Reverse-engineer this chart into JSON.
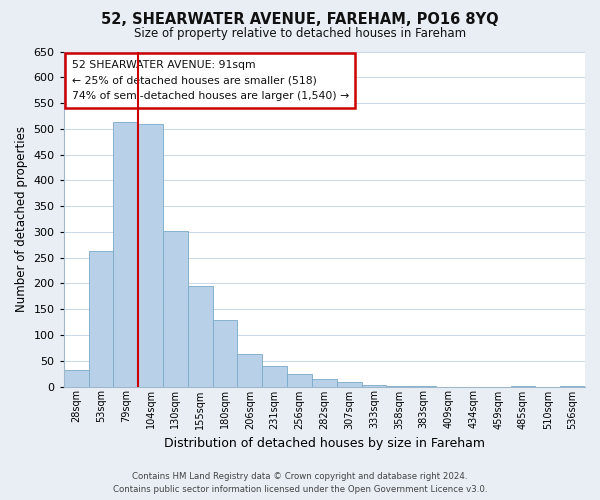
{
  "title": "52, SHEARWATER AVENUE, FAREHAM, PO16 8YQ",
  "subtitle": "Size of property relative to detached houses in Fareham",
  "xlabel": "Distribution of detached houses by size in Fareham",
  "ylabel": "Number of detached properties",
  "bin_labels": [
    "28sqm",
    "53sqm",
    "79sqm",
    "104sqm",
    "130sqm",
    "155sqm",
    "180sqm",
    "206sqm",
    "231sqm",
    "256sqm",
    "282sqm",
    "307sqm",
    "333sqm",
    "358sqm",
    "383sqm",
    "409sqm",
    "434sqm",
    "459sqm",
    "485sqm",
    "510sqm",
    "536sqm"
  ],
  "bar_heights": [
    33,
    263,
    513,
    510,
    302,
    195,
    130,
    64,
    40,
    25,
    15,
    8,
    2,
    1,
    1,
    0,
    0,
    0,
    1,
    0,
    1
  ],
  "bar_color": "#b8d0e8",
  "bar_edge_color": "#7aaac8",
  "highlight_line_color": "#cc0000",
  "annotation_line1": "52 SHEARWATER AVENUE: 91sqm",
  "annotation_line2": "← 25% of detached houses are smaller (518)",
  "annotation_line3": "74% of semi-detached houses are larger (1,540) →",
  "annotation_box_color": "#ffffff",
  "annotation_border_color": "#cc0000",
  "ylim": [
    0,
    650
  ],
  "yticks": [
    0,
    50,
    100,
    150,
    200,
    250,
    300,
    350,
    400,
    450,
    500,
    550,
    600,
    650
  ],
  "footer_line1": "Contains HM Land Registry data © Crown copyright and database right 2024.",
  "footer_line2": "Contains public sector information licensed under the Open Government Licence v3.0.",
  "bg_color": "#e8eef4",
  "plot_bg_color": "#ffffff",
  "grid_color": "#c8d8e8"
}
